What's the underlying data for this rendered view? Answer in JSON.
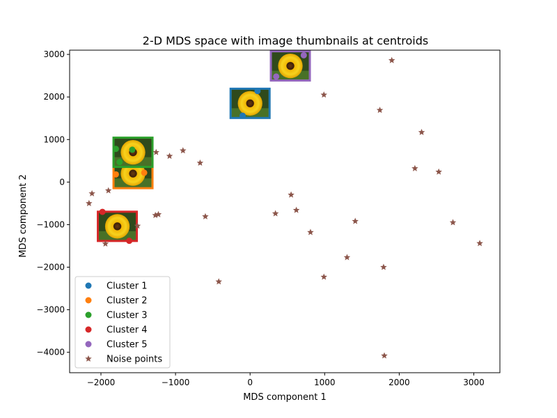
{
  "chart_data": {
    "type": "scatter",
    "title": "2-D MDS space with image thumbnails at centroids",
    "xlabel": "MDS component 1",
    "ylabel": "MDS component 2",
    "xlim": [
      -2420,
      3350
    ],
    "ylim": [
      -4480,
      3100
    ],
    "xticks": [
      -2000,
      -1000,
      0,
      1000,
      2000,
      3000
    ],
    "yticks": [
      -4000,
      -3000,
      -2000,
      -1000,
      0,
      1000,
      2000,
      3000
    ],
    "grid": false,
    "legend_position": "lower-left",
    "series": [
      {
        "name": "Cluster 1",
        "marker": "circle",
        "color": "#1f77b4",
        "points": [
          [
            100,
            2140
          ],
          [
            -100,
            1560
          ]
        ],
        "centroid": [
          0,
          1850
        ]
      },
      {
        "name": "Cluster 2",
        "marker": "circle",
        "color": "#ff7f0e",
        "points": [
          [
            -1800,
            180
          ],
          [
            -1420,
            220
          ]
        ],
        "centroid": [
          -1570,
          200
        ]
      },
      {
        "name": "Cluster 3",
        "marker": "circle",
        "color": "#2ca02c",
        "points": [
          [
            -1800,
            780
          ],
          [
            -1580,
            760
          ],
          [
            -1750,
            470
          ]
        ],
        "centroid": [
          -1570,
          700
        ]
      },
      {
        "name": "Cluster 4",
        "marker": "circle",
        "color": "#d62728",
        "points": [
          [
            -1980,
            -700
          ],
          [
            -1620,
            -1380
          ]
        ],
        "centroid": [
          -1780,
          -1040
        ]
      },
      {
        "name": "Cluster 5",
        "marker": "circle",
        "color": "#9467bd",
        "points": [
          [
            720,
            2980
          ],
          [
            350,
            2480
          ]
        ],
        "centroid": [
          540,
          2730
        ]
      },
      {
        "name": "Noise points",
        "marker": "star",
        "color": "#8c564b",
        "points": [
          [
            -2160,
            -500
          ],
          [
            -2120,
            -270
          ],
          [
            -1900,
            -200
          ],
          [
            -1940,
            -1450
          ],
          [
            -1510,
            -1030
          ],
          [
            -1260,
            700
          ],
          [
            -1270,
            -780
          ],
          [
            -1230,
            -760
          ],
          [
            -1080,
            610
          ],
          [
            -900,
            740
          ],
          [
            -670,
            450
          ],
          [
            -600,
            -810
          ],
          [
            -420,
            -2340
          ],
          [
            340,
            -740
          ],
          [
            550,
            -300
          ],
          [
            620,
            -660
          ],
          [
            810,
            -1180
          ],
          [
            990,
            2050
          ],
          [
            990,
            -2230
          ],
          [
            1300,
            -1770
          ],
          [
            1410,
            -920
          ],
          [
            1740,
            1690
          ],
          [
            1790,
            -2000
          ],
          [
            1800,
            -4080
          ],
          [
            1900,
            2860
          ],
          [
            2210,
            320
          ],
          [
            2300,
            1170
          ],
          [
            2530,
            240
          ],
          [
            2720,
            -950
          ],
          [
            3080,
            -1440
          ]
        ]
      }
    ]
  }
}
